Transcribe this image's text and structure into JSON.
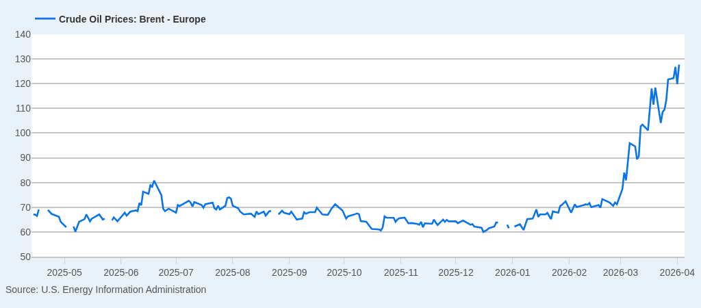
{
  "chart_data": {
    "type": "line",
    "x": [
      "2025-04-14",
      "2025-04-15",
      "2025-04-16",
      "2025-04-17",
      "2025-04-18",
      "2025-04-22",
      "2025-04-24",
      "2025-04-28",
      "2025-04-29",
      "2025-05-02",
      "2025-05-05",
      "2025-05-06",
      "2025-05-07",
      "2025-05-09",
      "2025-05-12",
      "2025-05-13",
      "2025-05-15",
      "2025-05-16",
      "2025-05-20",
      "2025-05-22",
      "2025-05-23",
      "2025-05-26",
      "2025-05-27",
      "2025-05-28",
      "2025-05-30",
      "2025-06-03",
      "2025-06-04",
      "2025-06-06",
      "2025-06-09",
      "2025-06-10",
      "2025-06-11",
      "2025-06-12",
      "2025-06-13",
      "2025-06-16",
      "2025-06-17",
      "2025-06-18",
      "2025-06-19",
      "2025-06-23",
      "2025-06-24",
      "2025-06-25",
      "2025-06-27",
      "2025-07-01",
      "2025-07-02",
      "2025-07-03",
      "2025-07-08",
      "2025-07-09",
      "2025-07-10",
      "2025-07-11",
      "2025-07-15",
      "2025-07-16",
      "2025-07-17",
      "2025-07-21",
      "2025-07-22",
      "2025-07-23",
      "2025-07-24",
      "2025-07-25",
      "2025-07-28",
      "2025-07-29",
      "2025-07-30",
      "2025-07-31",
      "2025-08-01",
      "2025-08-04",
      "2025-08-05",
      "2025-08-07",
      "2025-08-11",
      "2025-08-13",
      "2025-08-14",
      "2025-08-15",
      "2025-08-18",
      "2025-08-19",
      "2025-08-21",
      "2025-08-22",
      "2025-08-25",
      "2025-08-26",
      "2025-08-28",
      "2025-08-29",
      "2025-09-01",
      "2025-09-02",
      "2025-09-03",
      "2025-09-05",
      "2025-09-08",
      "2025-09-09",
      "2025-09-10",
      "2025-09-12",
      "2025-09-15",
      "2025-09-16",
      "2025-09-17",
      "2025-09-19",
      "2025-09-22",
      "2025-09-24",
      "2025-09-26",
      "2025-09-30",
      "2025-10-02",
      "2025-10-03",
      "2025-10-07",
      "2025-10-08",
      "2025-10-09",
      "2025-10-10",
      "2025-10-13",
      "2025-10-16",
      "2025-10-20",
      "2025-10-21",
      "2025-10-22",
      "2025-10-23",
      "2025-10-24",
      "2025-10-28",
      "2025-10-29",
      "2025-10-30",
      "2025-10-31",
      "2025-11-03",
      "2025-11-05",
      "2025-11-07",
      "2025-11-10",
      "2025-11-11",
      "2025-11-12",
      "2025-11-13",
      "2025-11-14",
      "2025-11-18",
      "2025-11-19",
      "2025-11-20",
      "2025-11-21",
      "2025-11-24",
      "2025-11-25",
      "2025-11-26",
      "2025-11-27",
      "2025-12-01",
      "2025-12-02",
      "2025-12-04",
      "2025-12-05",
      "2025-12-08",
      "2025-12-09",
      "2025-12-10",
      "2025-12-11",
      "2025-12-15",
      "2025-12-16",
      "2025-12-18",
      "2025-12-19",
      "2025-12-22",
      "2025-12-23",
      "2025-12-24",
      "2025-12-25",
      "2025-12-29",
      "2025-12-30",
      "2026-01-01",
      "2026-01-02",
      "2026-01-05",
      "2026-01-07",
      "2026-01-09",
      "2026-01-12",
      "2026-01-14",
      "2026-01-15",
      "2026-01-16",
      "2026-01-19",
      "2026-01-20",
      "2026-01-22",
      "2026-01-23",
      "2026-01-26",
      "2026-01-27",
      "2026-01-28",
      "2026-01-30",
      "2026-02-02",
      "2026-02-04",
      "2026-02-05",
      "2026-02-09",
      "2026-02-10",
      "2026-02-11",
      "2026-02-12",
      "2026-02-13",
      "2026-02-17",
      "2026-02-18",
      "2026-02-19",
      "2026-02-23",
      "2026-02-25",
      "2026-02-26",
      "2026-02-27",
      "2026-03-02",
      "2026-03-03",
      "2026-03-04",
      "2026-03-06",
      "2026-03-09",
      "2026-03-10",
      "2026-03-11",
      "2026-03-12",
      "2026-03-13",
      "2026-03-16",
      "2026-03-18",
      "2026-03-19",
      "2026-03-20",
      "2026-03-23",
      "2026-03-24",
      "2026-03-25",
      "2026-03-26",
      "2026-03-27",
      "2026-03-30",
      "2026-03-31",
      "2026-04-01",
      "2026-04-02"
    ],
    "series": [
      {
        "name": "Crude Oil Prices: Brent - Europe",
        "color": "#0b74e6",
        "values": [
          67.1,
          67.0,
          66.5,
          69.1,
          null,
          68.9,
          67.3,
          66.1,
          64.1,
          61.9,
          null,
          62.2,
          60.1,
          64.1,
          65.2,
          67.1,
          64.3,
          65.4,
          67.1,
          65.0,
          65.4,
          null,
          64.7,
          65.9,
          64.3,
          67.8,
          66.6,
          68.2,
          68.7,
          68.4,
          71.7,
          70.8,
          76.3,
          75.4,
          78.9,
          78.3,
          80.8,
          74.9,
          69.4,
          68.4,
          69.4,
          67.8,
          70.9,
          70.5,
          72.6,
          71.9,
          70.3,
          72.1,
          70.9,
          69.8,
          71.2,
          71.9,
          69.6,
          69.1,
          70.6,
          69.1,
          70.6,
          73.7,
          74.0,
          73.5,
          70.6,
          69.6,
          68.3,
          67.1,
          67.4,
          66.1,
          68.3,
          67.2,
          68.2,
          66.6,
          68.4,
          68.4,
          null,
          67.1,
          68.6,
          67.8,
          67.2,
          68.2,
          67.2,
          65.0,
          65.4,
          68.0,
          67.4,
          68.0,
          68.0,
          69.8,
          68.9,
          67.1,
          66.9,
          69.4,
          71.2,
          68.7,
          65.4,
          66.3,
          67.2,
          67.5,
          67.2,
          64.4,
          64.1,
          61.2,
          61.0,
          60.6,
          61.9,
          66.3,
          65.8,
          65.7,
          64.1,
          65.0,
          65.5,
          65.8,
          63.5,
          63.6,
          63.2,
          62.9,
          64.1,
          61.9,
          63.5,
          63.3,
          65.0,
          63.8,
          62.8,
          65.0,
          64.1,
          64.9,
          64.3,
          64.3,
          63.5,
          64.3,
          64.6,
          63.3,
          62.9,
          63.2,
          62.2,
          61.7,
          60.0,
          60.8,
          61.5,
          62.2,
          63.8,
          63.8,
          null,
          62.9,
          61.5,
          null,
          62.2,
          63.1,
          60.8,
          65.2,
          65.4,
          69.1,
          66.1,
          67.1,
          67.1,
          67.7,
          65.2,
          68.3,
          67.8,
          70.5,
          71.0,
          72.4,
          67.8,
          71.2,
          70.1,
          70.9,
          71.2,
          71.0,
          71.7,
          70.0,
          70.9,
          69.8,
          73.3,
          71.9,
          70.6,
          71.9,
          71.2,
          77.3,
          84.0,
          80.9,
          95.9,
          94.6,
          89.4,
          90.7,
          102.7,
          103.4,
          101.1,
          118.0,
          111.5,
          118.4,
          104.1,
          108.5,
          109.5,
          113.3,
          121.7,
          122.2,
          126.8,
          119.8,
          127.7
        ]
      }
    ],
    "xlim": [
      "2025-04-13",
      "2026-04-05"
    ],
    "xticks": [
      "2025-05",
      "2025-06",
      "2025-07",
      "2025-08",
      "2025-09",
      "2025-10",
      "2025-11",
      "2025-12",
      "2026-01",
      "2026-02",
      "2026-03",
      "2026-04"
    ],
    "ylim": [
      50,
      140
    ],
    "yticks": [
      50,
      60,
      70,
      80,
      90,
      100,
      110,
      120,
      130,
      140
    ],
    "grid": "y",
    "legend": "top left",
    "annotations": [
      "Source: U.S. Energy Information Administration"
    ]
  }
}
